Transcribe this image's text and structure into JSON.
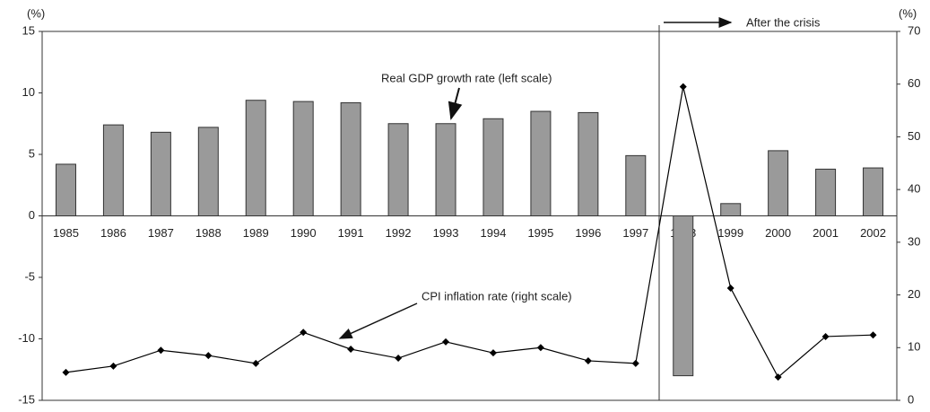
{
  "chart_data": {
    "type": "bar-line",
    "y_unit": "(%)",
    "y2_unit": "(%)",
    "categories": [
      "1985",
      "1986",
      "1987",
      "1988",
      "1989",
      "1990",
      "1991",
      "1992",
      "1993",
      "1994",
      "1995",
      "1996",
      "1997",
      "1998",
      "1999",
      "2000",
      "2001",
      "2002"
    ],
    "series": [
      {
        "name": "Real GDP growth rate (left scale)",
        "type": "bar",
        "color": "#9a9a9a",
        "values": [
          4.2,
          7.4,
          6.8,
          7.2,
          9.4,
          9.3,
          9.2,
          7.5,
          7.5,
          7.9,
          8.5,
          8.4,
          4.9,
          -13.0,
          1.0,
          5.3,
          3.8,
          3.9
        ]
      },
      {
        "name": "CPI inflation rate (right scale)",
        "type": "line",
        "axis": "y2",
        "color": "#000000",
        "values": [
          5.3,
          6.5,
          9.5,
          8.5,
          7.0,
          12.9,
          9.7,
          8.0,
          11.1,
          9.0,
          10.0,
          7.5,
          7.0,
          59.5,
          21.3,
          4.4,
          12.1,
          12.4
        ]
      }
    ],
    "annotation": "After the crisis",
    "ylim": [
      -15,
      15
    ],
    "yticks": [
      -15,
      -10,
      -5,
      0,
      5,
      10,
      15
    ],
    "y2lim": [
      0,
      70
    ],
    "y2ticks": [
      0,
      10,
      20,
      30,
      40,
      50,
      60,
      70
    ]
  }
}
